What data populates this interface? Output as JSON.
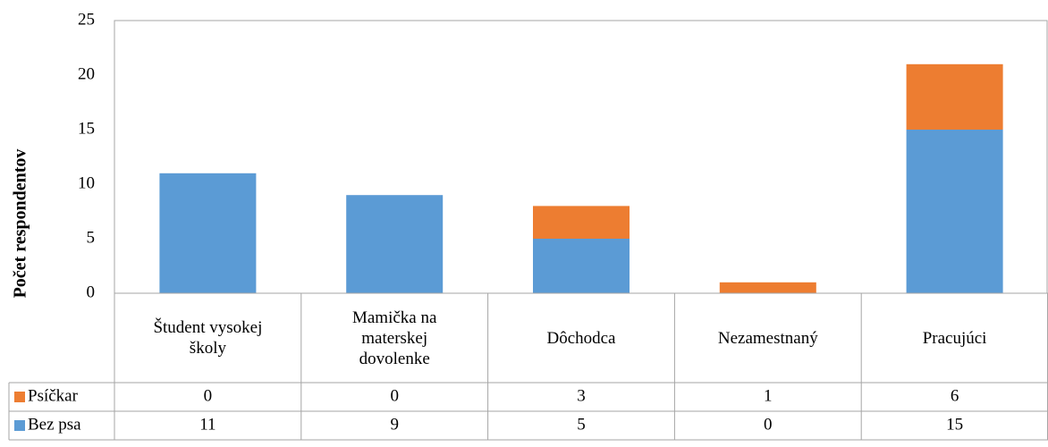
{
  "chart_data": {
    "type": "stacked_bar",
    "y_label": "Počet respondentov",
    "categories": [
      "Študent vysokej školy",
      "Mamička na materskej dovolenke",
      "Dôchodca",
      "Nezamestnaný",
      "Pracujúci"
    ],
    "series": [
      {
        "name": "Psíčkar",
        "color": "#ed7d31",
        "values": [
          0,
          0,
          3,
          1,
          6
        ]
      },
      {
        "name": "Bez psa",
        "color": "#5b9bd5",
        "values": [
          11,
          9,
          5,
          0,
          15
        ]
      }
    ],
    "ylim": [
      0,
      25
    ],
    "yticks": [
      0,
      5,
      10,
      15,
      20,
      25
    ],
    "grid": false,
    "data_table": true
  }
}
